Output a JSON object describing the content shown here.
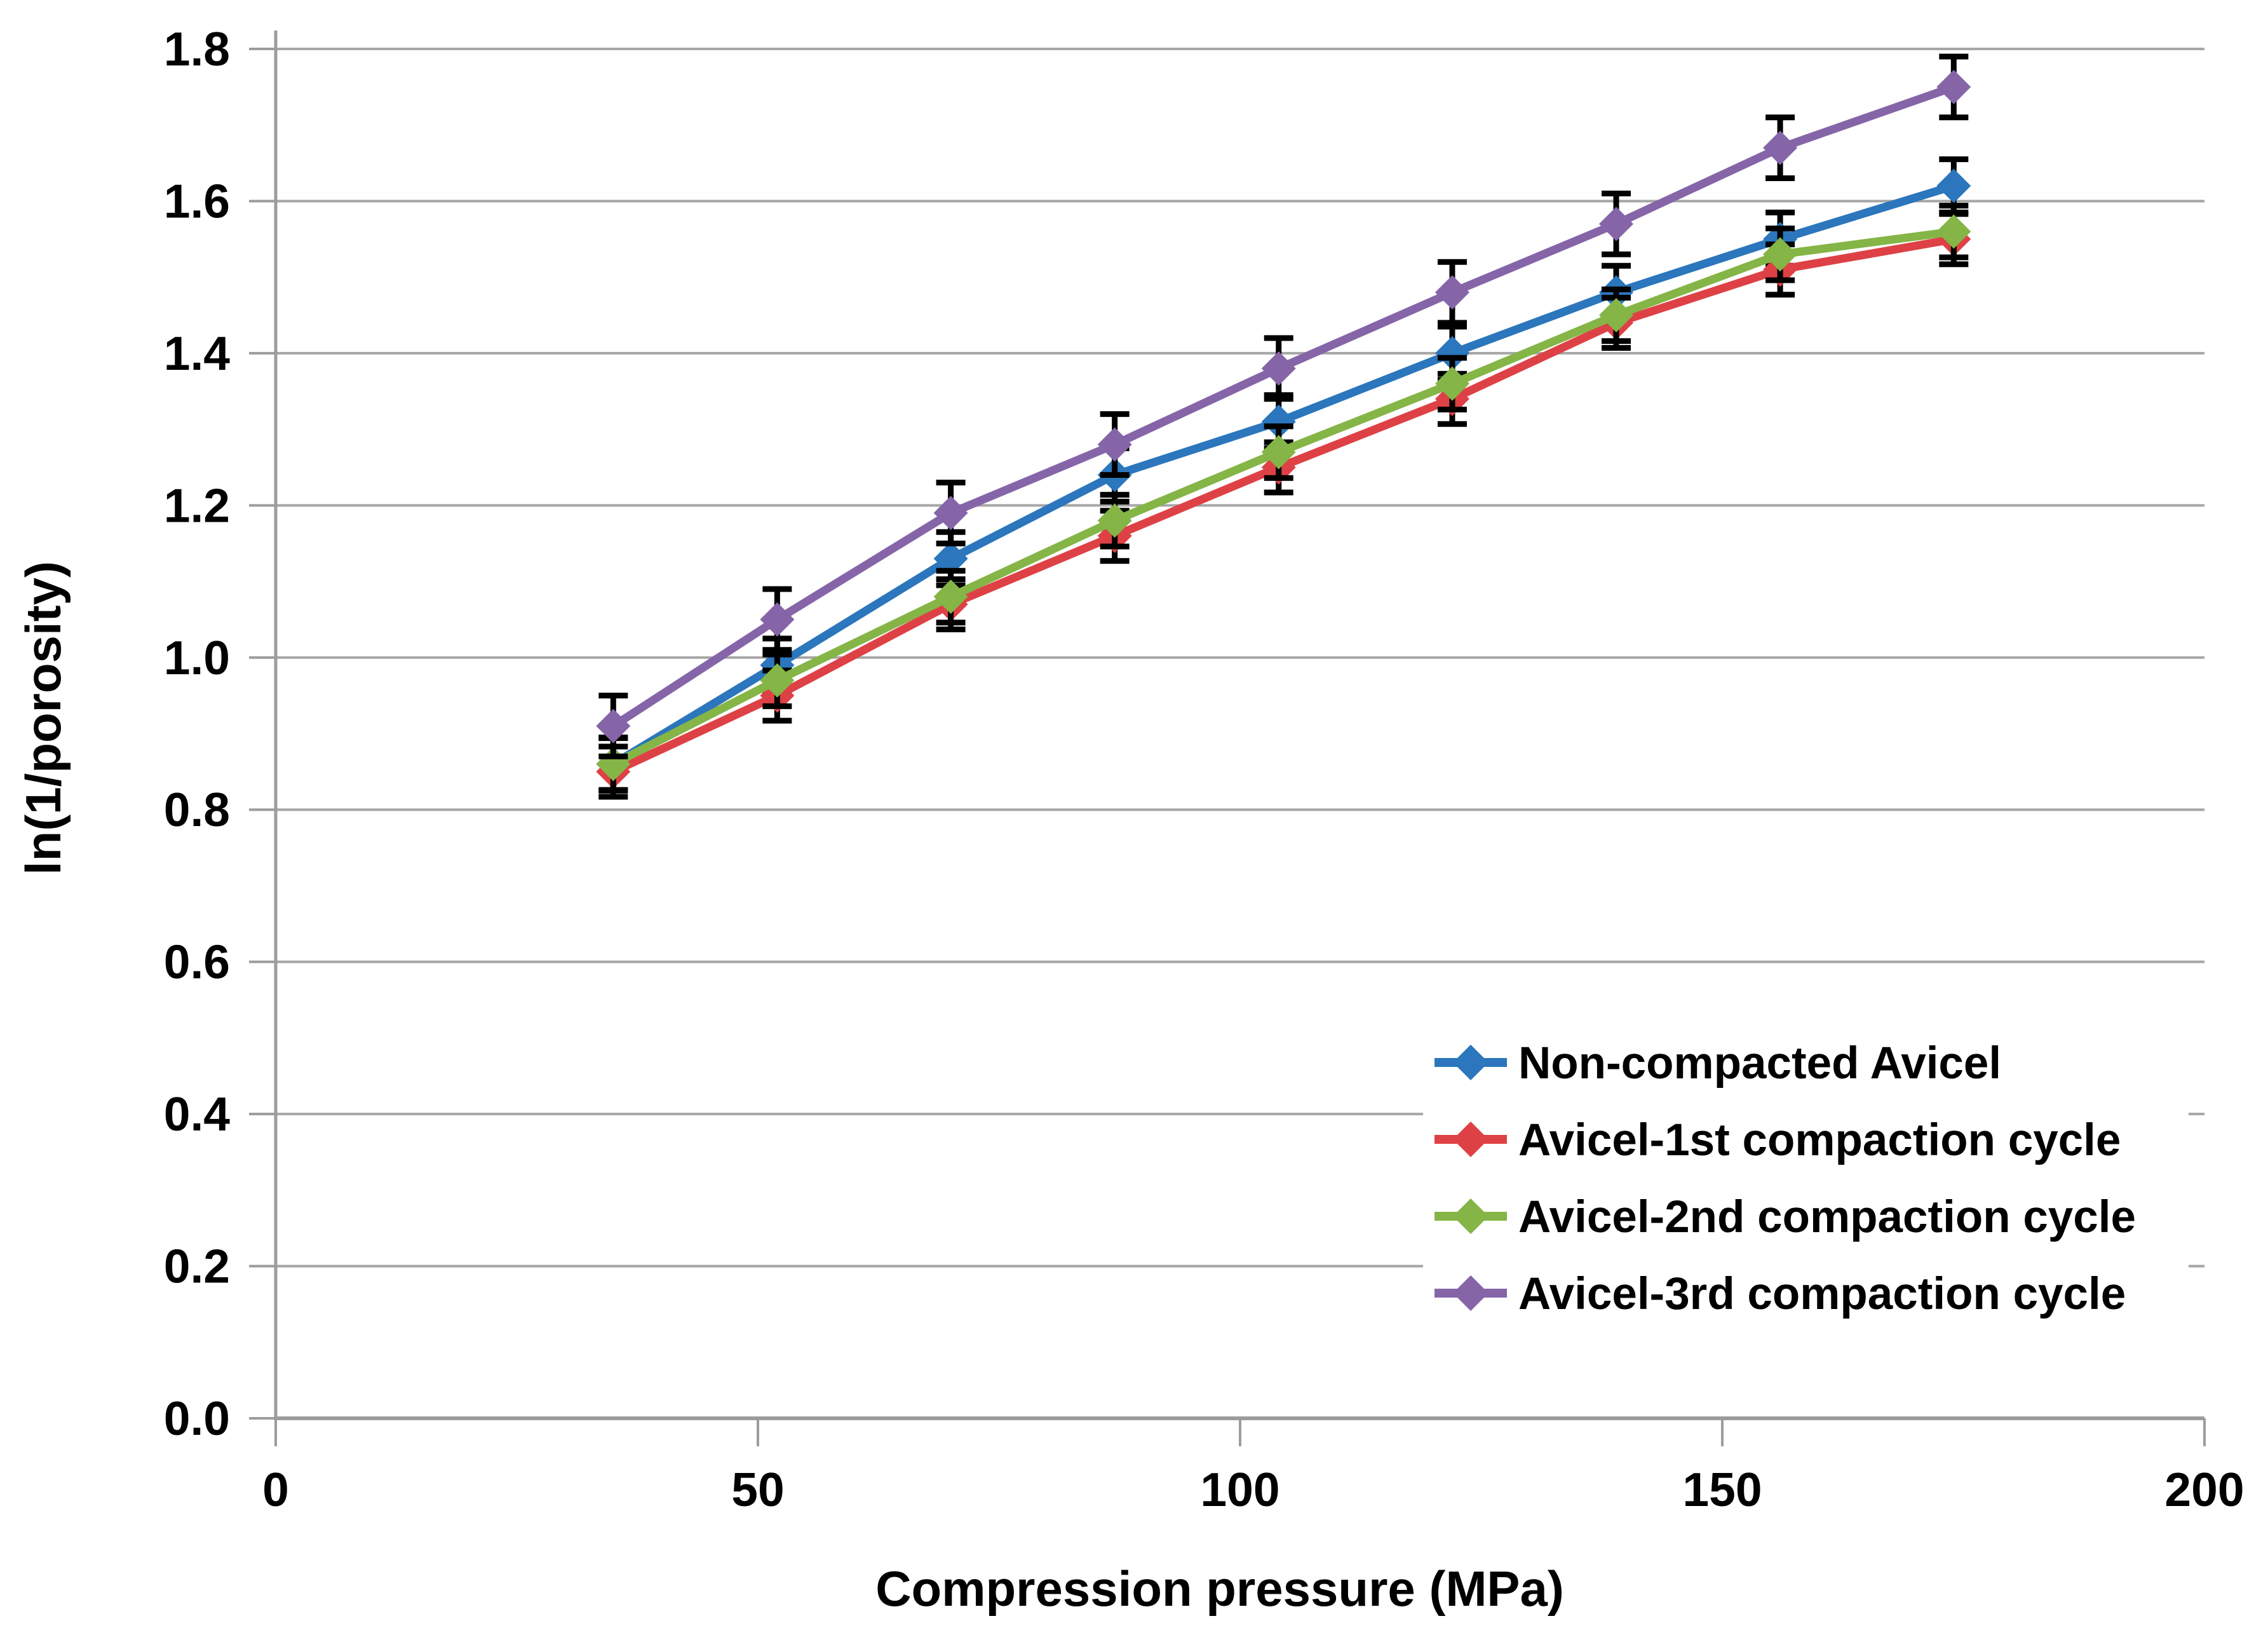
{
  "figure": {
    "background_color": "#ffffff",
    "grid_color": "#a6a6a6",
    "axis_color": "#9c9c9c",
    "error_bar_color": "#000000",
    "text_color": "#000000"
  },
  "chart_data": {
    "type": "line",
    "title": "",
    "xlabel": "Compression pressure (MPa)",
    "ylabel": "ln(1/porosity)",
    "x": [
      35,
      52,
      70,
      87,
      104,
      122,
      139,
      156,
      174
    ],
    "xlim": [
      0,
      200
    ],
    "ylim": [
      0.0,
      1.8
    ],
    "x_tick_values": [
      0,
      50,
      100,
      150,
      200
    ],
    "x_tick_labels": [
      "0",
      "50",
      "100",
      "150",
      "200"
    ],
    "y_tick_values": [
      0.0,
      0.2,
      0.4,
      0.6,
      0.8,
      1.0,
      1.2,
      1.4,
      1.6,
      1.8
    ],
    "y_tick_labels": [
      "0.0",
      "0.2",
      "0.4",
      "0.6",
      "0.8",
      "1.0",
      "1.2",
      "1.4",
      "1.6",
      "1.8"
    ],
    "grid": "horizontal",
    "marker": "diamond",
    "error_bars": true,
    "legend_position": "lower-right",
    "series": [
      {
        "name": "Non-compacted Avicel",
        "color": "#2b76bc",
        "values": [
          0.86,
          0.99,
          1.13,
          1.24,
          1.31,
          1.4,
          1.48,
          1.55,
          1.62
        ],
        "error": 0.035
      },
      {
        "name": "Avicel-1st compaction cycle",
        "color": "#de4145",
        "values": [
          0.85,
          0.95,
          1.07,
          1.16,
          1.25,
          1.34,
          1.44,
          1.51,
          1.55
        ],
        "error": 0.033
      },
      {
        "name": "Avicel-2nd compaction cycle",
        "color": "#84b546",
        "values": [
          0.86,
          0.97,
          1.08,
          1.18,
          1.27,
          1.36,
          1.45,
          1.53,
          1.56
        ],
        "error": 0.034
      },
      {
        "name": "Avicel-3rd compaction cycle",
        "color": "#8565a8",
        "values": [
          0.91,
          1.05,
          1.19,
          1.28,
          1.38,
          1.48,
          1.57,
          1.67,
          1.75
        ],
        "error": 0.04
      }
    ]
  }
}
